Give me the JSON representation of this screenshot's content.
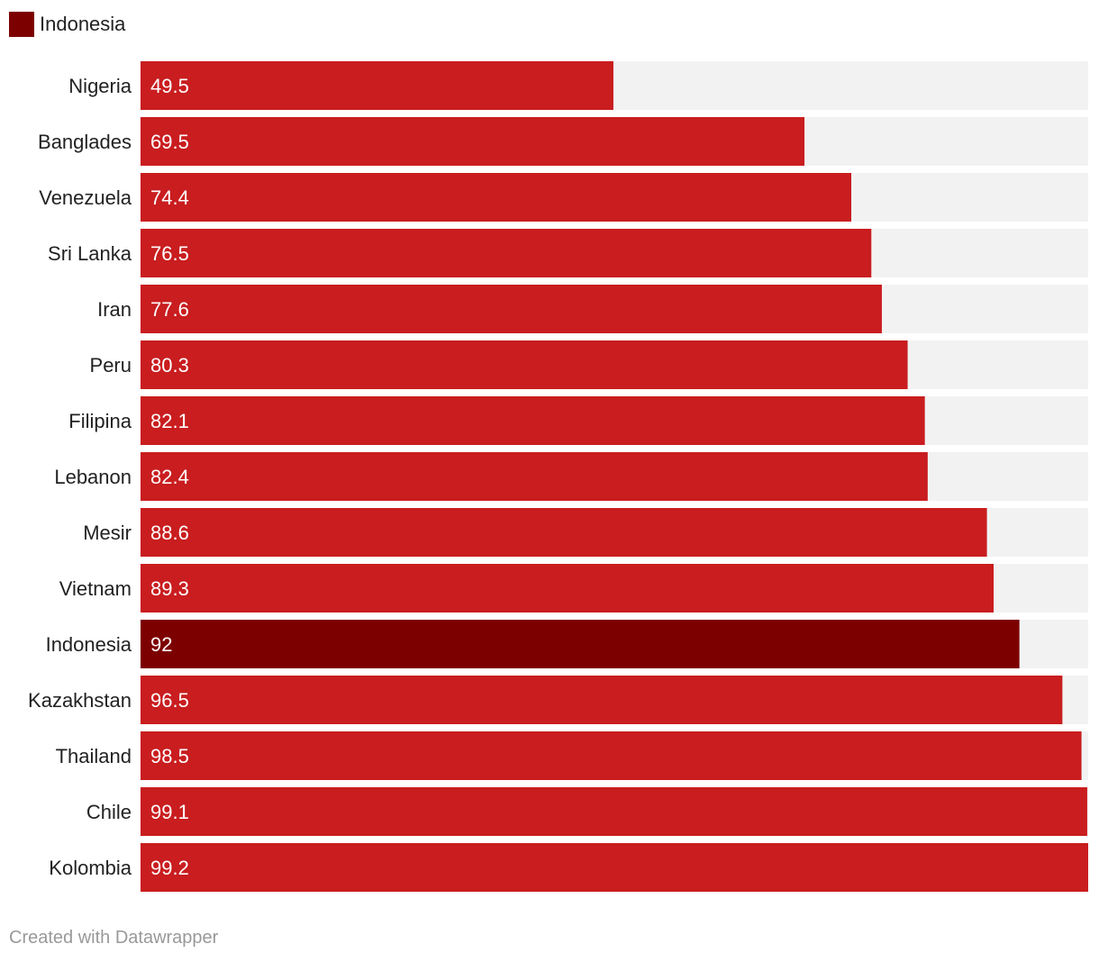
{
  "legend": {
    "label": "Indonesia",
    "color": "#7d0000"
  },
  "footer": {
    "credit": "Created with Datawrapper"
  },
  "colors": {
    "bar": "#c91d1f",
    "highlight": "#7d0000",
    "track": "#f2f2f2"
  },
  "chart_data": {
    "type": "bar",
    "orientation": "horizontal",
    "categories": [
      "Nigeria",
      "Banglades",
      "Venezuela",
      "Sri Lanka",
      "Iran",
      "Peru",
      "Filipina",
      "Lebanon",
      "Mesir",
      "Vietnam",
      "Indonesia",
      "Kazakhstan",
      "Thailand",
      "Chile",
      "Kolombia"
    ],
    "values": [
      49.5,
      69.5,
      74.4,
      76.5,
      77.6,
      80.3,
      82.1,
      82.4,
      88.6,
      89.3,
      92,
      96.5,
      98.5,
      99.1,
      99.2
    ],
    "value_labels": [
      "49.5",
      "69.5",
      "74.4",
      "76.5",
      "77.6",
      "80.3",
      "82.1",
      "82.4",
      "88.6",
      "89.3",
      "92",
      "96.5",
      "98.5",
      "99.1",
      "99.2"
    ],
    "highlight": "Indonesia",
    "xlim": [
      0,
      99.2
    ],
    "grid": false,
    "legend_position": "top-left"
  }
}
